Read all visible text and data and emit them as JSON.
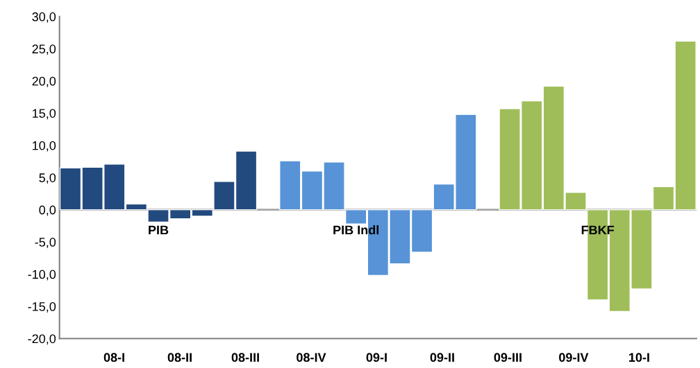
{
  "chart_data": {
    "type": "bar",
    "categories": [
      null,
      null,
      null,
      null,
      null,
      null,
      null,
      null,
      null,
      null,
      null,
      null,
      null,
      null,
      null,
      null,
      null,
      null,
      null,
      null,
      null,
      null,
      null,
      null,
      null,
      null,
      null,
      null,
      null
    ],
    "series": [
      {
        "name": "PIB",
        "color": "#234a7e",
        "values": [
          6.5,
          6.6,
          7.1,
          0.9,
          -1.9,
          -1.4,
          -1.0,
          4.4,
          9.1,
          null,
          null,
          null,
          null,
          null,
          null,
          null,
          null,
          null,
          null,
          null,
          null,
          null,
          null,
          null,
          null,
          null,
          null,
          null,
          null
        ]
      },
      {
        "name": "PIB Indl",
        "color": "#5793d6",
        "values": [
          null,
          null,
          null,
          null,
          null,
          null,
          null,
          null,
          null,
          null,
          7.6,
          6.0,
          7.4,
          -2.2,
          -10.2,
          -8.4,
          -6.6,
          4.0,
          14.8,
          null,
          null,
          null,
          null,
          null,
          null,
          null,
          null,
          null,
          null
        ]
      },
      {
        "name": "FBKF",
        "color": "#9fbe5a",
        "values": [
          null,
          null,
          null,
          null,
          null,
          null,
          null,
          null,
          null,
          null,
          null,
          null,
          null,
          null,
          null,
          null,
          null,
          null,
          null,
          null,
          15.7,
          16.9,
          19.2,
          2.7,
          -14.0,
          -15.8,
          -12.3,
          3.6,
          26.2
        ]
      }
    ],
    "ylim": [
      -20,
      30
    ],
    "yticks": [
      {
        "value": -20,
        "label": "-20,0"
      },
      {
        "value": -15,
        "label": "-15,0"
      },
      {
        "value": -10,
        "label": "-10,0"
      },
      {
        "value": -5,
        "label": "-5,0"
      },
      {
        "value": 0,
        "label": "0,0"
      },
      {
        "value": 5,
        "label": "5,0"
      },
      {
        "value": 10,
        "label": "10,0"
      },
      {
        "value": 15,
        "label": "15,0"
      },
      {
        "value": 20,
        "label": "20,0"
      },
      {
        "value": 25,
        "label": "25,0"
      },
      {
        "value": 30,
        "label": "30,0"
      }
    ],
    "ref_lines": [
      {
        "axis": "y",
        "value": 0,
        "color": "#a6a6a6"
      }
    ],
    "annotations": [
      "08-I",
      "08-II",
      "08-III",
      "08-IV",
      "09-I",
      "09-II",
      "09-III",
      "09-IV",
      "10-I"
    ],
    "grid": false,
    "legend": false
  }
}
